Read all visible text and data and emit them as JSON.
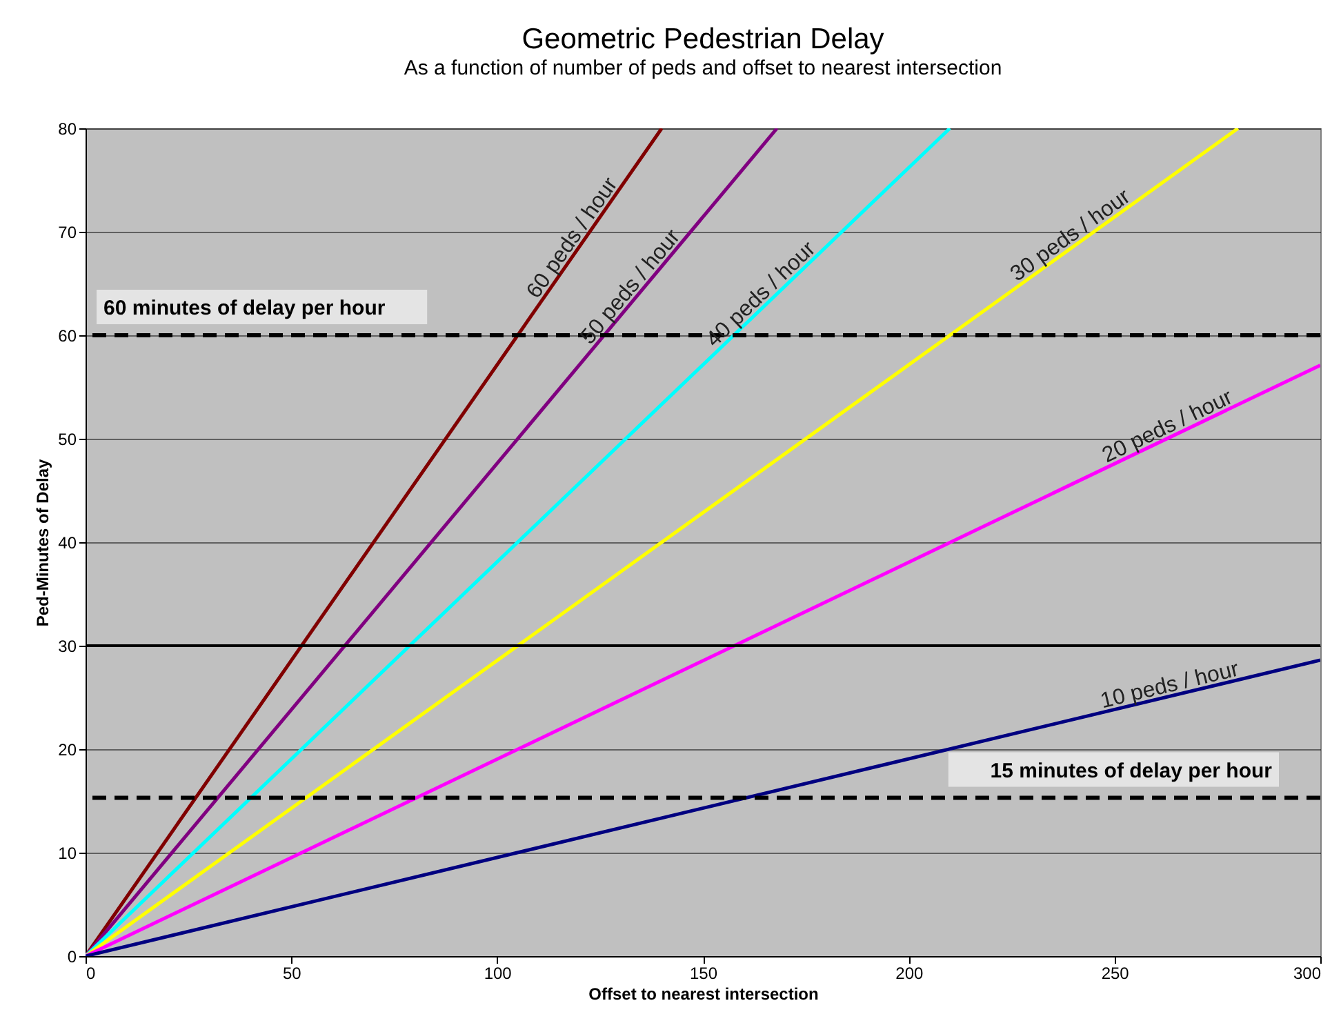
{
  "chart_data": {
    "type": "line",
    "title": "Geometric Pedestrian Delay",
    "subtitle": "As a function of number of peds and offset to nearest intersection",
    "xlabel": "Offset to nearest intersection",
    "ylabel": "Ped-Minutes of Delay",
    "series": [
      {
        "name": "60 peds / hour",
        "color": "#800000",
        "x": [
          0,
          140
        ],
        "values": [
          0,
          80
        ]
      },
      {
        "name": "50 peds / hour",
        "color": "#800080",
        "x": [
          0,
          168
        ],
        "values": [
          0,
          80
        ]
      },
      {
        "name": "40 peds / hour",
        "color": "#00ffff",
        "x": [
          0,
          210
        ],
        "values": [
          0,
          80
        ]
      },
      {
        "name": "30 peds / hour",
        "color": "#ffff00",
        "x": [
          0,
          280
        ],
        "values": [
          0,
          80
        ]
      },
      {
        "name": "20 peds / hour",
        "color": "#ff00ff",
        "x": [
          0,
          300
        ],
        "values": [
          0,
          57.1
        ]
      },
      {
        "name": "10 peds / hour",
        "color": "#000080",
        "x": [
          0,
          300
        ],
        "values": [
          0,
          28.6
        ]
      }
    ],
    "xlim": [
      0,
      300
    ],
    "xticks": [
      0,
      50,
      100,
      150,
      200,
      250,
      300
    ],
    "ylim": [
      0,
      80
    ],
    "yticks": [
      0,
      10,
      20,
      30,
      40,
      50,
      60,
      70,
      80
    ],
    "ref_lines": [
      {
        "axis": "y",
        "value": 60,
        "label": "60 minutes of delay per hour",
        "color": "#000000",
        "line_style": "dashed"
      },
      {
        "axis": "y",
        "value": 30,
        "color": "#000000",
        "line_style": "solid"
      },
      {
        "axis": "y",
        "value": 15.3,
        "label": "15 minutes of delay per hour",
        "color": "#000000",
        "line_style": "dashed"
      }
    ],
    "grid": "y",
    "legend": false
  }
}
